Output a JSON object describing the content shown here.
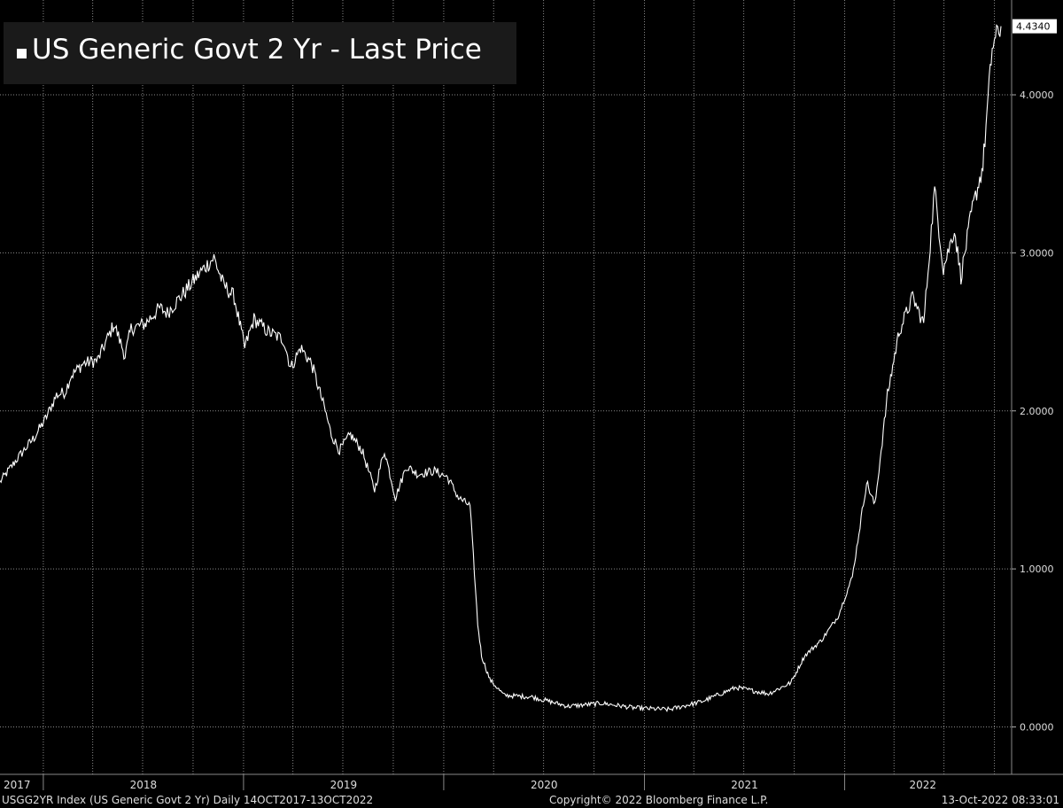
{
  "chart_data": {
    "type": "line",
    "legend": "US Generic Govt 2 Yr - Last Price",
    "series": [
      {
        "name": "US Generic Govt 2 Yr - Last Price",
        "color": "#ffffff",
        "points": [
          [
            "2017-10-14",
            1.55
          ],
          [
            "2017-11-15",
            1.7
          ],
          [
            "2017-12-15",
            1.83
          ],
          [
            "2018-01-05",
            1.95
          ],
          [
            "2018-01-25",
            2.1
          ],
          [
            "2018-02-10",
            2.12
          ],
          [
            "2018-02-20",
            2.22
          ],
          [
            "2018-03-15",
            2.3
          ],
          [
            "2018-04-10",
            2.32
          ],
          [
            "2018-05-10",
            2.55
          ],
          [
            "2018-05-30",
            2.35
          ],
          [
            "2018-06-10",
            2.52
          ],
          [
            "2018-07-05",
            2.55
          ],
          [
            "2018-08-01",
            2.65
          ],
          [
            "2018-08-15",
            2.62
          ],
          [
            "2018-09-15",
            2.75
          ],
          [
            "2018-10-15",
            2.88
          ],
          [
            "2018-11-08",
            2.97
          ],
          [
            "2018-11-25",
            2.8
          ],
          [
            "2018-12-15",
            2.72
          ],
          [
            "2019-01-03",
            2.4
          ],
          [
            "2019-01-20",
            2.58
          ],
          [
            "2019-02-15",
            2.5
          ],
          [
            "2019-03-15",
            2.45
          ],
          [
            "2019-03-28",
            2.27
          ],
          [
            "2019-04-15",
            2.4
          ],
          [
            "2019-05-05",
            2.3
          ],
          [
            "2019-05-30",
            2.0
          ],
          [
            "2019-06-10",
            1.85
          ],
          [
            "2019-06-25",
            1.75
          ],
          [
            "2019-07-15",
            1.85
          ],
          [
            "2019-08-05",
            1.75
          ],
          [
            "2019-08-28",
            1.5
          ],
          [
            "2019-09-15",
            1.75
          ],
          [
            "2019-10-05",
            1.45
          ],
          [
            "2019-10-25",
            1.65
          ],
          [
            "2019-11-15",
            1.6
          ],
          [
            "2019-12-15",
            1.62
          ],
          [
            "2020-01-08",
            1.58
          ],
          [
            "2020-01-28",
            1.45
          ],
          [
            "2020-02-18",
            1.4
          ],
          [
            "2020-03-03",
            0.65
          ],
          [
            "2020-03-10",
            0.45
          ],
          [
            "2020-03-25",
            0.3
          ],
          [
            "2020-04-20",
            0.2
          ],
          [
            "2020-06-10",
            0.19
          ],
          [
            "2020-08-15",
            0.13
          ],
          [
            "2020-10-15",
            0.15
          ],
          [
            "2020-12-15",
            0.12
          ],
          [
            "2021-02-15",
            0.11
          ],
          [
            "2021-04-15",
            0.16
          ],
          [
            "2021-06-17",
            0.25
          ],
          [
            "2021-08-15",
            0.21
          ],
          [
            "2021-09-25",
            0.28
          ],
          [
            "2021-10-20",
            0.45
          ],
          [
            "2021-11-20",
            0.55
          ],
          [
            "2021-12-20",
            0.7
          ],
          [
            "2022-01-15",
            0.95
          ],
          [
            "2022-02-10",
            1.55
          ],
          [
            "2022-02-25",
            1.4
          ],
          [
            "2022-03-20",
            2.1
          ],
          [
            "2022-04-10",
            2.5
          ],
          [
            "2022-05-05",
            2.72
          ],
          [
            "2022-05-25",
            2.55
          ],
          [
            "2022-06-14",
            3.4
          ],
          [
            "2022-06-30",
            2.9
          ],
          [
            "2022-07-20",
            3.15
          ],
          [
            "2022-08-01",
            2.85
          ],
          [
            "2022-08-20",
            3.25
          ],
          [
            "2022-09-10",
            3.55
          ],
          [
            "2022-09-27",
            4.3
          ],
          [
            "2022-10-13",
            4.434
          ]
        ]
      }
    ],
    "x_range": [
      "2017-10-14",
      "2022-10-13"
    ],
    "ylim": [
      -0.3,
      4.6
    ],
    "y_ticks": [
      "0.0000",
      "1.0000",
      "2.0000",
      "3.0000",
      "4.0000"
    ],
    "last_value_label": "4.4340",
    "x_tick_labels": [
      "2017",
      "2018",
      "2019",
      "2020",
      "2021",
      "2022"
    ],
    "grid": true,
    "background": "#000000",
    "line_color": "#ffffff"
  },
  "footer": {
    "left": "USGG2YR Index (US Generic Govt 2 Yr)  Daily 14OCT2017-13OCT2022",
    "center": "Copyright© 2022 Bloomberg Finance L.P.",
    "right": "13-Oct-2022 08:33:01"
  }
}
